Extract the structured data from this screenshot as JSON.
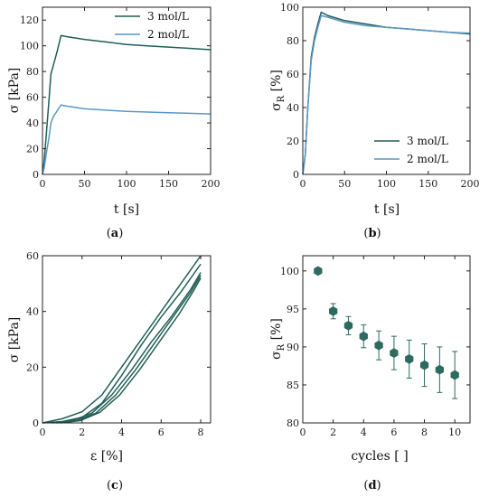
{
  "colors": {
    "dark_green": "#215e56",
    "light_blue": "#5a97c8",
    "marker": "#2d6b60"
  },
  "chart_data": [
    {
      "panel_label": "a",
      "type": "line",
      "xlabel": "t [s]",
      "ylabel": "σ [kPa]",
      "xlim": [
        0,
        200
      ],
      "ylim": [
        0,
        130
      ],
      "xticks": [
        "0",
        "50",
        "100",
        "150",
        "200"
      ],
      "yticks": [
        "0",
        "20",
        "40",
        "60",
        "80",
        "100",
        "120"
      ],
      "legend_position": "top-right",
      "series": [
        {
          "name": "3 mol/L",
          "color": "dark_green",
          "x": [
            0,
            2,
            5,
            8,
            10,
            13,
            18,
            22,
            30,
            50,
            75,
            100,
            125,
            150,
            175,
            200
          ],
          "y": [
            0,
            10,
            35,
            60,
            78,
            85,
            97,
            108,
            107,
            105,
            103,
            101,
            100,
            99,
            98,
            97
          ]
        },
        {
          "name": "2 mol/L",
          "color": "light_blue",
          "x": [
            0,
            2,
            5,
            8,
            10,
            13,
            18,
            22,
            30,
            50,
            75,
            100,
            125,
            150,
            175,
            200
          ],
          "y": [
            0,
            5,
            18,
            30,
            40,
            45,
            50,
            54,
            53,
            51,
            50,
            49,
            48.5,
            48,
            47.5,
            47
          ]
        }
      ]
    },
    {
      "panel_label": "b",
      "type": "line",
      "xlabel": "t [s]",
      "ylabel": "σ",
      "ylabel_sub": "R",
      "ylabel_unit": " [%]",
      "xlim": [
        0,
        200
      ],
      "ylim": [
        0,
        100
      ],
      "xticks": [
        "0",
        "50",
        "100",
        "150",
        "200"
      ],
      "yticks": [
        "0",
        "20",
        "40",
        "60",
        "80",
        "100"
      ],
      "legend_position": "bottom-right",
      "series": [
        {
          "name": "3 mol/L",
          "color": "dark_green",
          "x": [
            0,
            3,
            6,
            10,
            14,
            18,
            22,
            30,
            50,
            75,
            100,
            125,
            150,
            175,
            200
          ],
          "y": [
            0,
            12,
            40,
            70,
            82,
            90,
            97,
            95,
            92,
            90,
            88,
            87,
            86,
            85,
            84
          ]
        },
        {
          "name": "2 mol/L",
          "color": "light_blue",
          "x": [
            0,
            3,
            6,
            10,
            14,
            18,
            22,
            30,
            50,
            75,
            100,
            125,
            150,
            175,
            200
          ],
          "y": [
            0,
            12,
            40,
            68,
            80,
            88,
            95,
            94,
            91,
            89,
            88,
            87,
            86,
            85,
            84.5
          ]
        }
      ]
    },
    {
      "panel_label": "c",
      "type": "line",
      "xlabel": "ε [%]",
      "ylabel": "σ [kPa]",
      "xlim": [
        0,
        8.5
      ],
      "ylim": [
        0,
        60
      ],
      "xticks": [
        "0",
        "2",
        "4",
        "6",
        "8"
      ],
      "yticks": [
        "0",
        "20",
        "40",
        "60"
      ],
      "series": [
        {
          "color": "dark_green",
          "x": [
            0,
            1,
            2,
            3,
            4,
            5,
            6,
            7,
            8
          ],
          "y": [
            0,
            1.5,
            4,
            10,
            20,
            30,
            40,
            50,
            60
          ]
        },
        {
          "color": "dark_green",
          "x": [
            0,
            1,
            2,
            3,
            4,
            5,
            6,
            7,
            8
          ],
          "y": [
            0,
            0.5,
            2,
            7,
            17,
            28,
            38,
            47,
            57
          ]
        },
        {
          "color": "dark_green",
          "x": [
            0.5,
            1.5,
            2.5,
            3.5,
            4.5,
            5.5,
            6.5,
            7.5,
            8
          ],
          "y": [
            0,
            0.8,
            3.5,
            10,
            19,
            29,
            38,
            48,
            54
          ]
        },
        {
          "color": "dark_green",
          "x": [
            0.7,
            1.7,
            2.7,
            3.7,
            4.7,
            5.7,
            6.7,
            7.5,
            8
          ],
          "y": [
            0,
            0.8,
            3.5,
            10,
            19,
            29,
            39,
            47,
            53
          ]
        },
        {
          "color": "dark_green",
          "x": [
            0.9,
            1.9,
            2.9,
            3.9,
            4.9,
            5.9,
            6.9,
            7.6,
            8
          ],
          "y": [
            0,
            0.8,
            3.8,
            10,
            19,
            29,
            39,
            47,
            52
          ]
        }
      ]
    },
    {
      "panel_label": "d",
      "type": "scatter",
      "xlabel": "cycles [ ]",
      "ylabel": "σ",
      "ylabel_sub": "R",
      "ylabel_unit": " [%]",
      "xlim": [
        0,
        11
      ],
      "ylim": [
        80,
        102
      ],
      "xticks": [
        "0",
        "2",
        "4",
        "6",
        "8",
        "10"
      ],
      "yticks": [
        "80",
        "85",
        "90",
        "95",
        "100"
      ],
      "points": [
        {
          "x": 1,
          "y": 100.0,
          "err": 0
        },
        {
          "x": 2,
          "y": 94.7,
          "err": 1.0
        },
        {
          "x": 3,
          "y": 92.8,
          "err": 1.2
        },
        {
          "x": 4,
          "y": 91.4,
          "err": 1.5
        },
        {
          "x": 5,
          "y": 90.2,
          "err": 1.9
        },
        {
          "x": 6,
          "y": 89.2,
          "err": 2.2
        },
        {
          "x": 7,
          "y": 88.4,
          "err": 2.5
        },
        {
          "x": 8,
          "y": 87.6,
          "err": 2.8
        },
        {
          "x": 9,
          "y": 87.0,
          "err": 3.0
        },
        {
          "x": 10,
          "y": 86.3,
          "err": 3.1
        }
      ]
    }
  ]
}
